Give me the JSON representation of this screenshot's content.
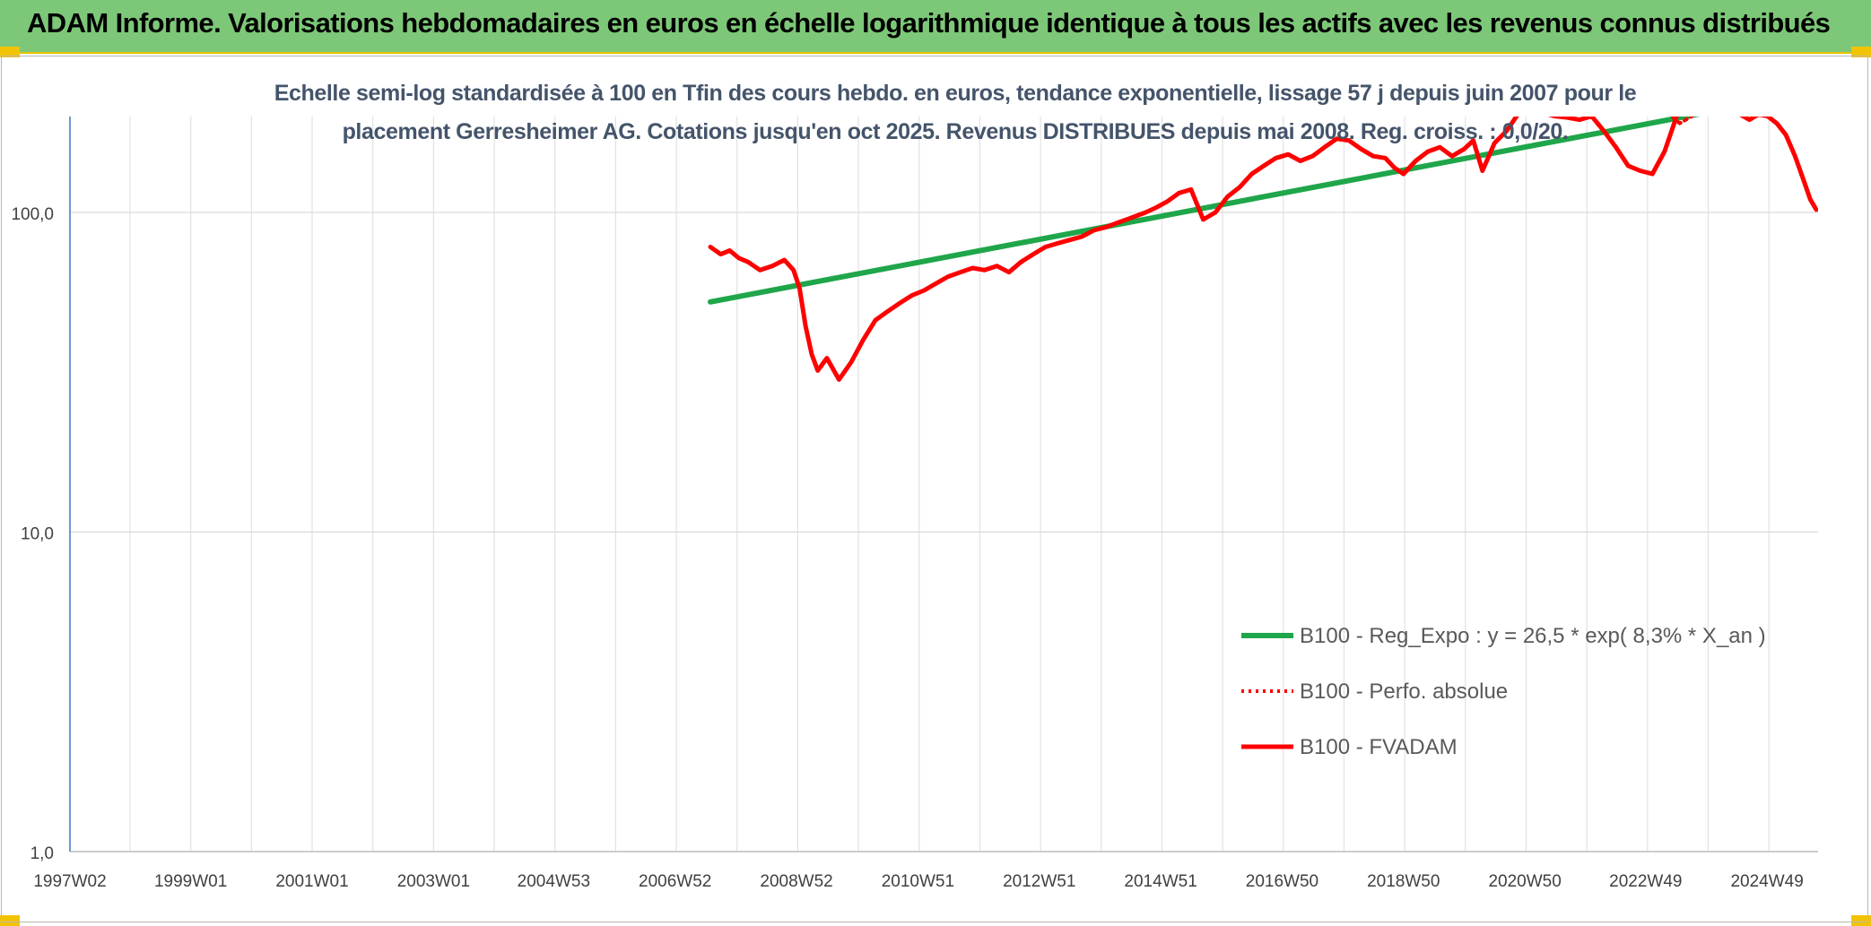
{
  "header": {
    "title": "ADAM Informe. Valorisations hebdomadaires en euros en échelle logarithmique identique à tous les actifs avec les revenus connus distribués"
  },
  "chart_data": {
    "type": "line",
    "title": "",
    "subtitle_line1": "Echelle semi-log standardisée à 100 en Tfin des cours hebdo. en euros, tendance exponentielle, lissage 57 j depuis juin 2007 pour le",
    "subtitle_line2": "placement Gerresheimer AG. Cotations jusqu'en oct 2025. Revenus DISTRIBUES depuis mai 2008. Reg. croiss. : 0,0/20.",
    "y_scale": "log",
    "ylim": [
      1,
      200
    ],
    "y_ticks": [
      {
        "value": 1,
        "label": "1,0"
      },
      {
        "value": 10,
        "label": "10,0"
      },
      {
        "value": 100,
        "label": "100,0"
      }
    ],
    "x_range": [
      1997.03,
      2025.83
    ],
    "x_ticks": [
      {
        "label": "1997W02",
        "value": 1997.03
      },
      {
        "label": "1999W01",
        "value": 1999.02
      },
      {
        "label": "2001W01",
        "value": 2001.02
      },
      {
        "label": "2003W01",
        "value": 2003.02
      },
      {
        "label": "2004W53",
        "value": 2005.0
      },
      {
        "label": "2006W52",
        "value": 2007.0
      },
      {
        "label": "2008W52",
        "value": 2009.0
      },
      {
        "label": "2010W51",
        "value": 2011.0
      },
      {
        "label": "2012W51",
        "value": 2013.0
      },
      {
        "label": "2014W51",
        "value": 2015.0
      },
      {
        "label": "2016W50",
        "value": 2017.0
      },
      {
        "label": "2018W50",
        "value": 2019.0
      },
      {
        "label": "2020W50",
        "value": 2021.0
      },
      {
        "label": "2022W49",
        "value": 2022.99
      },
      {
        "label": "2024W49",
        "value": 2024.99
      }
    ],
    "grid": true,
    "legend_position": "bottom-right",
    "series": [
      {
        "name": "B100 - Reg_Expo : y = 26,5 * exp( 8,3% *  X_an )",
        "color": "#1fa64a",
        "style": "solid",
        "x": [
          2007.58,
          2024.2
        ],
        "y": [
          52.5,
          209
        ]
      },
      {
        "name": "B100 - Perfo. absolue",
        "color": "#ff0000",
        "style": "dotted",
        "x": [
          2023.35,
          2023.55,
          2023.75,
          2023.95
        ],
        "y": [
          205,
          190,
          200,
          214
        ]
      },
      {
        "name": "B100 - FVADAM",
        "color": "#ff0000",
        "style": "solid",
        "x": [
          2007.58,
          2007.75,
          2007.9,
          2008.05,
          2008.2,
          2008.4,
          2008.6,
          2008.8,
          2008.95,
          2009.05,
          2009.15,
          2009.25,
          2009.35,
          2009.5,
          2009.7,
          2009.9,
          2010.1,
          2010.3,
          2010.5,
          2010.7,
          2010.9,
          2011.1,
          2011.3,
          2011.5,
          2011.7,
          2011.9,
          2012.1,
          2012.3,
          2012.5,
          2012.7,
          2012.9,
          2013.1,
          2013.3,
          2013.5,
          2013.7,
          2013.9,
          2014.1,
          2014.3,
          2014.5,
          2014.75,
          2014.9,
          2015.1,
          2015.3,
          2015.5,
          2015.7,
          2015.9,
          2016.1,
          2016.3,
          2016.5,
          2016.7,
          2016.9,
          2017.1,
          2017.3,
          2017.5,
          2017.7,
          2017.9,
          2018.1,
          2018.3,
          2018.5,
          2018.7,
          2018.85,
          2019.0,
          2019.2,
          2019.4,
          2019.6,
          2019.8,
          2020.0,
          2020.15,
          2020.3,
          2020.5,
          2020.7,
          2020.9,
          2021.1,
          2021.3,
          2021.5,
          2021.7,
          2021.9,
          2022.1,
          2022.3,
          2022.5,
          2022.7,
          2022.9,
          2023.1,
          2023.3,
          2023.5,
          2023.7,
          2023.9,
          2024.1,
          2024.3,
          2024.5,
          2024.7,
          2024.85,
          2025.0,
          2025.15,
          2025.3,
          2025.45,
          2025.6,
          2025.7,
          2025.8
        ],
        "y": [
          78,
          74,
          76,
          72,
          70,
          66,
          68,
          71,
          66,
          58,
          44,
          36,
          32,
          35,
          30,
          34,
          40,
          46,
          49,
          52,
          55,
          57,
          60,
          63,
          65,
          67,
          66,
          68,
          65,
          70,
          74,
          78,
          80,
          82,
          84,
          88,
          90,
          93,
          96,
          100,
          103,
          108,
          115,
          118,
          95,
          100,
          112,
          120,
          132,
          140,
          148,
          152,
          145,
          150,
          160,
          170,
          168,
          158,
          150,
          148,
          138,
          132,
          145,
          155,
          160,
          150,
          158,
          168,
          135,
          165,
          180,
          205,
          210,
          205,
          200,
          198,
          195,
          200,
          180,
          160,
          140,
          135,
          132,
          155,
          200,
          235,
          230,
          210,
          212,
          205,
          195,
          203,
          200,
          190,
          175,
          150,
          125,
          110,
          102
        ]
      }
    ]
  }
}
